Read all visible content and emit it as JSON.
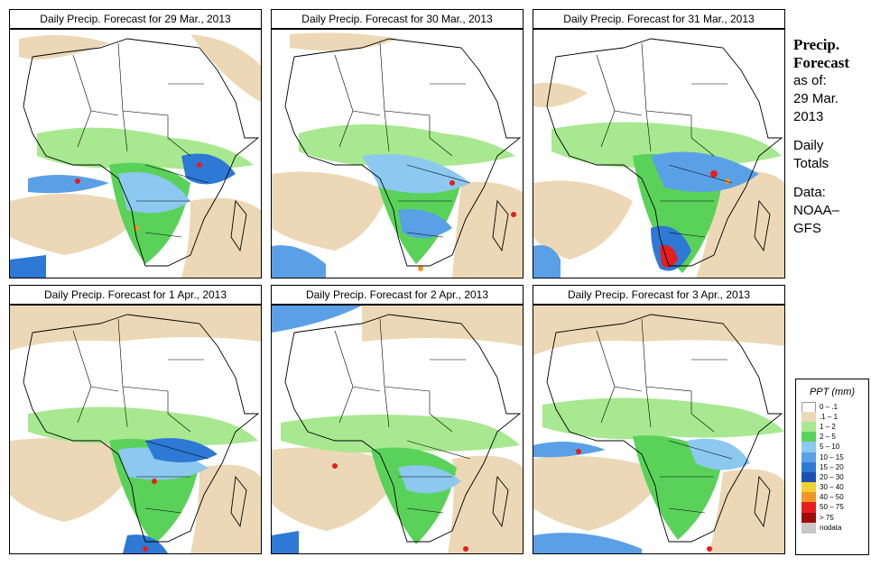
{
  "panels": [
    {
      "title": "Daily Precip. Forecast for  29 Mar., 2013"
    },
    {
      "title": "Daily Precip. Forecast for  30 Mar., 2013"
    },
    {
      "title": "Daily Precip. Forecast for  31 Mar., 2013"
    },
    {
      "title": "Daily Precip. Forecast for  1 Apr., 2013"
    },
    {
      "title": "Daily Precip. Forecast for  2 Apr., 2013"
    },
    {
      "title": "Daily Precip. Forecast for  3 Apr., 2013"
    }
  ],
  "sidebar": {
    "title_line1": "Precip.",
    "title_line2": "Forecast",
    "asof_line1": "as of:",
    "asof_line2": "29 Mar.",
    "asof_line3": "2013",
    "daily_line1": "Daily",
    "daily_line2": "Totals",
    "data_line1": "Data:",
    "data_line2": "NOAA–",
    "data_line3": "GFS"
  },
  "legend": {
    "title": "PPT (mm)",
    "items": [
      {
        "label": "0 – .1",
        "color": "#ffffff"
      },
      {
        "label": ".1 – 1",
        "color": "#ecd8b6"
      },
      {
        "label": "1 – 2",
        "color": "#a8e890"
      },
      {
        "label": "2 – 5",
        "color": "#5ad25a"
      },
      {
        "label": "5 – 10",
        "color": "#8cc8f0"
      },
      {
        "label": "10 – 15",
        "color": "#5aa0e6"
      },
      {
        "label": "15 – 20",
        "color": "#2e78d6"
      },
      {
        "label": "20 – 30",
        "color": "#1e50b4"
      },
      {
        "label": "30 – 40",
        "color": "#f0d232"
      },
      {
        "label": "40 – 50",
        "color": "#f09628"
      },
      {
        "label": "50 – 75",
        "color": "#e61e1e"
      },
      {
        "label": "> 75",
        "color": "#a00a0a"
      },
      {
        "label": "nodata",
        "color": "#c8c8c8"
      }
    ]
  }
}
